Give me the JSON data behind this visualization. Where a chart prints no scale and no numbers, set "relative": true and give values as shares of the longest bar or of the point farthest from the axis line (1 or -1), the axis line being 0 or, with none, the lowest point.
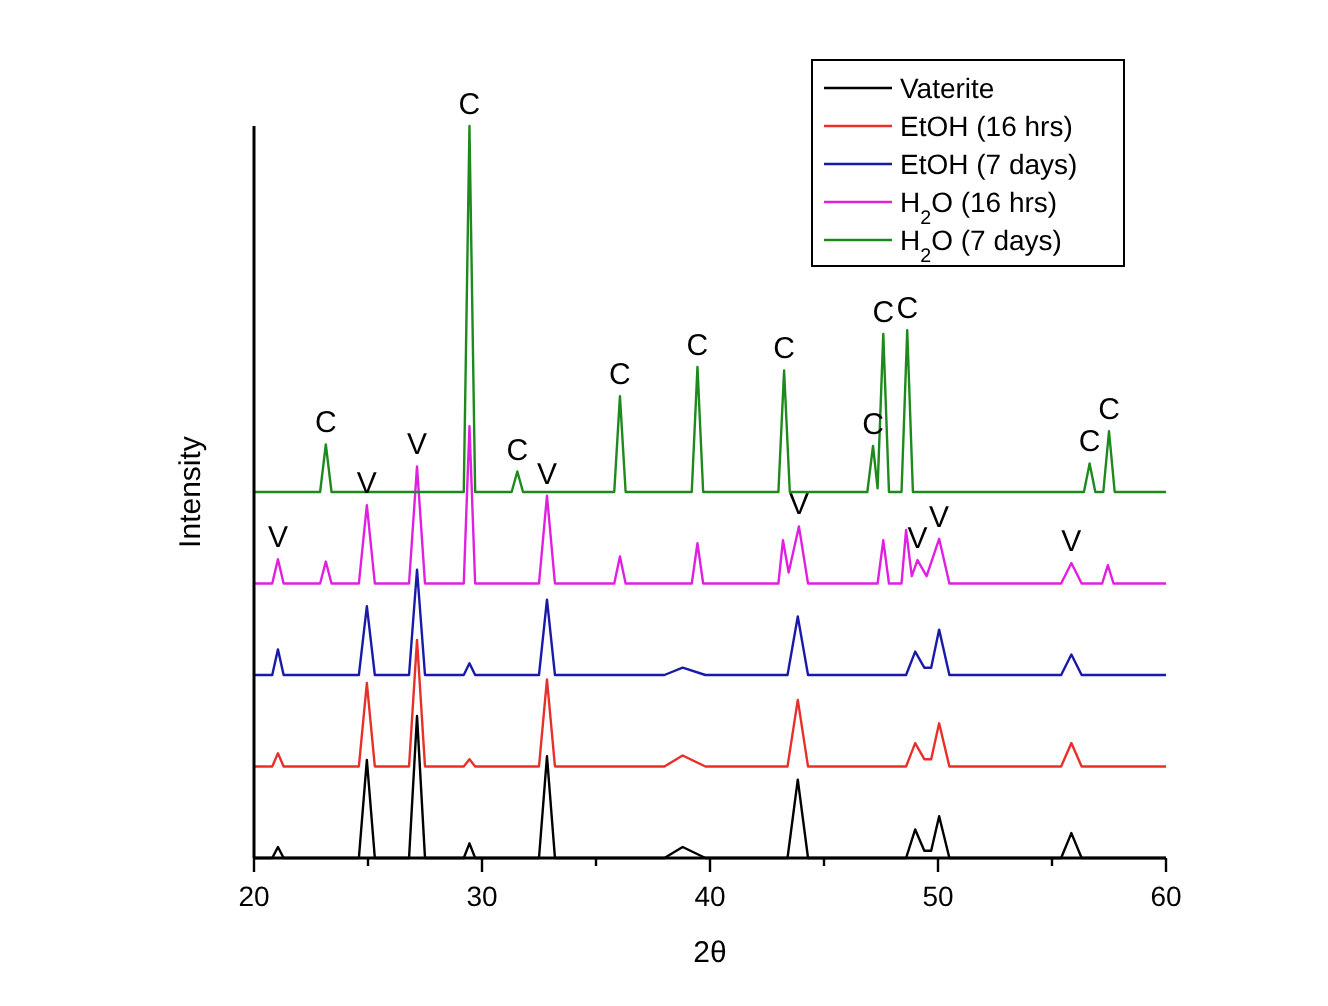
{
  "chart_data": {
    "type": "line",
    "xlabel": "2θ",
    "ylabel": "Intensity",
    "relative": true,
    "xlim": [
      20,
      60
    ],
    "xticks": [
      20,
      {
        "value": 25,
        "label": null
      },
      30,
      {
        "value": 35,
        "label": null
      },
      40,
      {
        "value": 45,
        "label": null
      },
      50,
      {
        "value": 55,
        "label": null
      },
      60
    ],
    "legend": "top right",
    "grid": false,
    "line_style": "solid",
    "x": [
      20,
      20.8,
      21.05,
      21.3,
      24.6,
      24.95,
      25.3,
      26.8,
      27.15,
      27.5,
      29.2,
      29.45,
      29.7,
      32.5,
      32.85,
      33.2,
      38.0,
      38.8,
      39.8,
      43.4,
      43.85,
      44.3,
      48.6,
      49.0,
      49.4,
      49.7,
      50.05,
      50.5,
      55.4,
      55.85,
      56.3,
      60
    ],
    "series": [
      {
        "name": "Vaterite",
        "color": "#000000",
        "values": [
          0,
          0,
          0.015,
          0,
          0,
          0.134,
          0,
          0,
          0.194,
          0,
          0,
          0.02,
          0,
          0,
          0.139,
          0,
          0,
          0.015,
          0,
          0,
          0.107,
          0,
          0,
          0.039,
          0.01,
          0.01,
          0.057,
          0,
          0,
          0.034,
          0,
          0
        ]
      },
      {
        "name": "EtOH (16 hrs)",
        "color": "#e8302a",
        "values": [
          0.125,
          0.125,
          0.143,
          0.125,
          0.125,
          0.239,
          0.125,
          0.125,
          0.298,
          0.125,
          0.125,
          0.135,
          0.125,
          0.125,
          0.244,
          0.125,
          0.125,
          0.14,
          0.125,
          0.125,
          0.216,
          0.125,
          0.125,
          0.157,
          0.135,
          0.135,
          0.184,
          0.125,
          0.125,
          0.157,
          0.125,
          0.125
        ]
      },
      {
        "name": "EtOH (7 days)",
        "color": "#1a1aa8",
        "values": [
          0.25,
          0.25,
          0.285,
          0.25,
          0.25,
          0.344,
          0.25,
          0.25,
          0.394,
          0.25,
          0.25,
          0.266,
          0.25,
          0.25,
          0.353,
          0.25,
          0.25,
          0.26,
          0.25,
          0.25,
          0.33,
          0.25,
          0.25,
          0.282,
          0.26,
          0.26,
          0.312,
          0.25,
          0.25,
          0.278,
          0.25,
          0.25
        ]
      },
      {
        "name": "H$_{2}$O (16 hrs)",
        "color": "#e020e0",
        "x": [
          20,
          20.8,
          21.05,
          21.3,
          22.9,
          23.15,
          23.4,
          24.6,
          24.95,
          25.3,
          26.8,
          27.15,
          27.5,
          29.2,
          29.45,
          29.7,
          32.5,
          32.85,
          33.2,
          35.8,
          36.05,
          36.3,
          39.2,
          39.45,
          39.7,
          43.0,
          43.2,
          43.45,
          43.9,
          44.3,
          47.35,
          47.6,
          47.85,
          48.4,
          48.6,
          48.85,
          49.1,
          49.5,
          50.05,
          50.5,
          55.4,
          55.85,
          56.3,
          57.2,
          57.45,
          57.7,
          60
        ],
        "values": [
          0.375,
          0.375,
          0.408,
          0.375,
          0.375,
          0.405,
          0.375,
          0.375,
          0.482,
          0.375,
          0.375,
          0.535,
          0.375,
          0.375,
          0.59,
          0.375,
          0.375,
          0.495,
          0.375,
          0.375,
          0.412,
          0.375,
          0.375,
          0.43,
          0.375,
          0.375,
          0.434,
          0.39,
          0.453,
          0.375,
          0.375,
          0.434,
          0.375,
          0.375,
          0.448,
          0.385,
          0.407,
          0.385,
          0.436,
          0.375,
          0.375,
          0.403,
          0.375,
          0.375,
          0.4,
          0.375,
          0.375
        ]
      },
      {
        "name": "H$_{2}$O (7 days)",
        "color": "#1e8a1e",
        "x": [
          20,
          22.9,
          23.15,
          23.4,
          29.2,
          29.45,
          29.7,
          31.3,
          31.55,
          31.8,
          35.8,
          36.05,
          36.3,
          39.2,
          39.45,
          39.7,
          43.0,
          43.25,
          43.5,
          46.9,
          47.15,
          47.35,
          47.6,
          47.85,
          48.4,
          48.65,
          48.9,
          56.4,
          56.65,
          56.9,
          57.25,
          57.5,
          57.75,
          60
        ],
        "values": [
          0.5,
          0.5,
          0.565,
          0.5,
          0.5,
          1,
          0.5,
          0.5,
          0.528,
          0.5,
          0.5,
          0.631,
          0.5,
          0.5,
          0.671,
          0.5,
          0.5,
          0.666,
          0.5,
          0.5,
          0.563,
          0.505,
          0.716,
          0.5,
          0.5,
          0.721,
          0.5,
          0.5,
          0.539,
          0.5,
          0.5,
          0.583,
          0.5,
          0.5
        ]
      }
    ],
    "annotations": [
      {
        "text": "C",
        "x": 23.15,
        "y": 0.565
      },
      {
        "text": "C",
        "x": 29.45,
        "y": 1
      },
      {
        "text": "C",
        "x": 31.55,
        "y": 0.528
      },
      {
        "text": "C",
        "x": 36.05,
        "y": 0.631
      },
      {
        "text": "C",
        "x": 39.45,
        "y": 0.671
      },
      {
        "text": "C",
        "x": 43.25,
        "y": 0.666
      },
      {
        "text": "C",
        "x": 47.15,
        "y": 0.563
      },
      {
        "text": "C",
        "x": 47.6,
        "y": 0.716
      },
      {
        "text": "C",
        "x": 48.65,
        "y": 0.721
      },
      {
        "text": "C",
        "x": 56.65,
        "y": 0.539
      },
      {
        "text": "C",
        "x": 57.5,
        "y": 0.583
      },
      {
        "text": "V",
        "x": 21.05,
        "y": 0.408
      },
      {
        "text": "V",
        "x": 24.95,
        "y": 0.482
      },
      {
        "text": "V",
        "x": 27.15,
        "y": 0.535
      },
      {
        "text": "V",
        "x": 32.85,
        "y": 0.495
      },
      {
        "text": "V",
        "x": 43.9,
        "y": 0.453
      },
      {
        "text": "V",
        "x": 49.1,
        "y": 0.407
      },
      {
        "text": "V",
        "x": 50.05,
        "y": 0.436
      },
      {
        "text": "V",
        "x": 55.85,
        "y": 0.403
      }
    ]
  }
}
